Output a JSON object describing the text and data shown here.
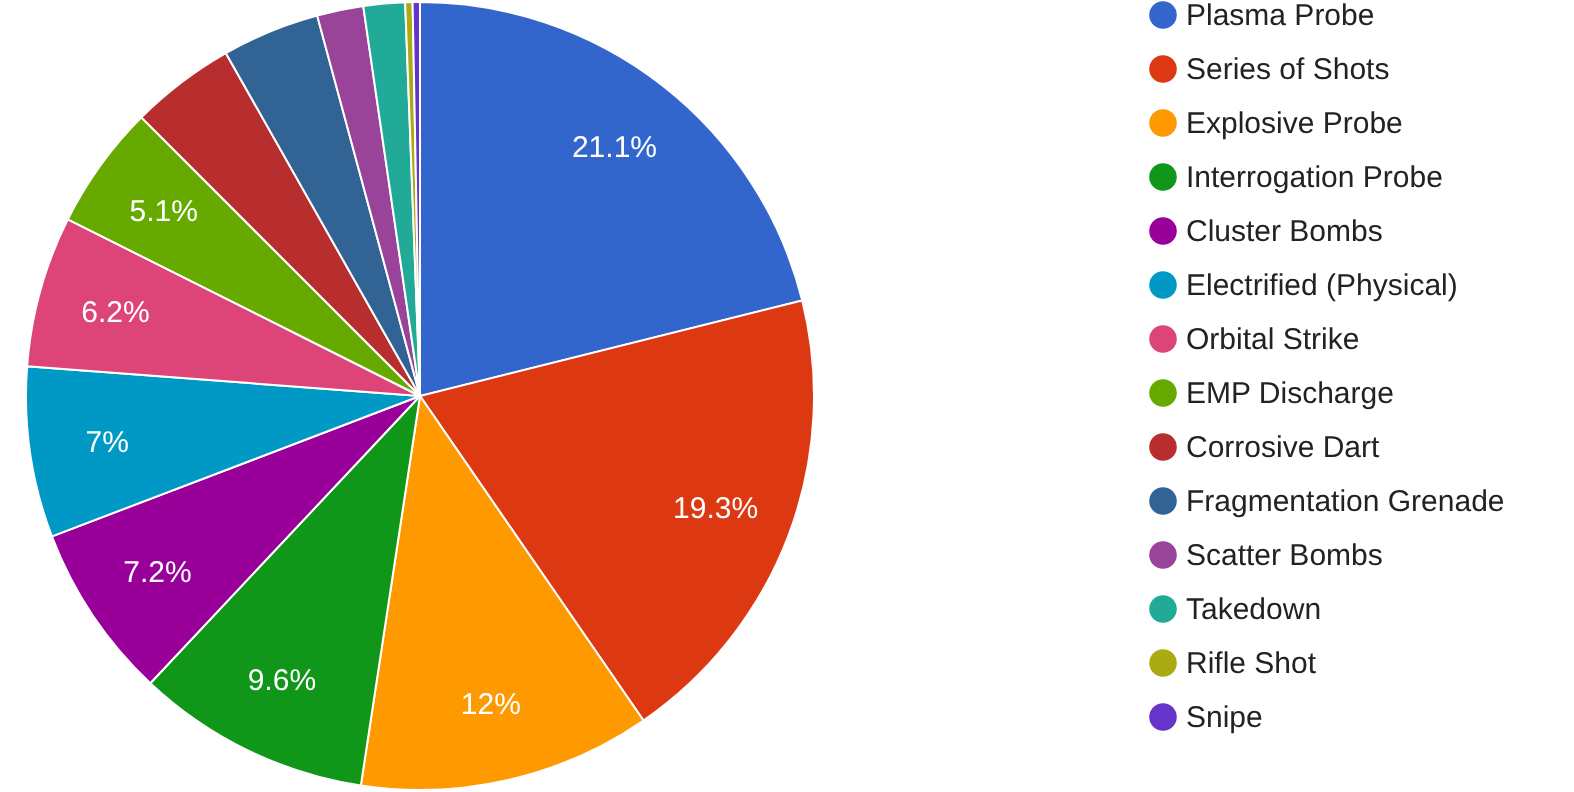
{
  "chart_data": {
    "type": "pie",
    "categories": [
      "Plasma Probe",
      "Series of Shots",
      "Explosive Probe",
      "Interrogation Probe",
      "Cluster Bombs",
      "Electrified (Physical)",
      "Orbital Strike",
      "EMP Discharge",
      "Corrosive Dart",
      "Fragmentation Grenade",
      "Scatter Bombs",
      "Takedown",
      "Rifle Shot",
      "Snipe"
    ],
    "values": [
      21.1,
      19.3,
      12,
      9.6,
      7.2,
      7,
      6.2,
      5.1,
      4.3,
      4.0,
      1.9,
      1.7,
      0.3,
      0.3
    ],
    "value_labels": [
      "21.1%",
      "19.3%",
      "12%",
      "9.6%",
      "7.2%",
      "7%",
      "6.2%",
      "5.1%",
      null,
      null,
      null,
      null,
      null,
      null
    ],
    "colors": [
      "#3366cc",
      "#dc3912",
      "#ff9900",
      "#109618",
      "#990099",
      "#0099c6",
      "#dd4477",
      "#66aa00",
      "#b82e2e",
      "#316395",
      "#994499",
      "#22aa99",
      "#aaaa11",
      "#6633cc"
    ],
    "legend": "right"
  }
}
